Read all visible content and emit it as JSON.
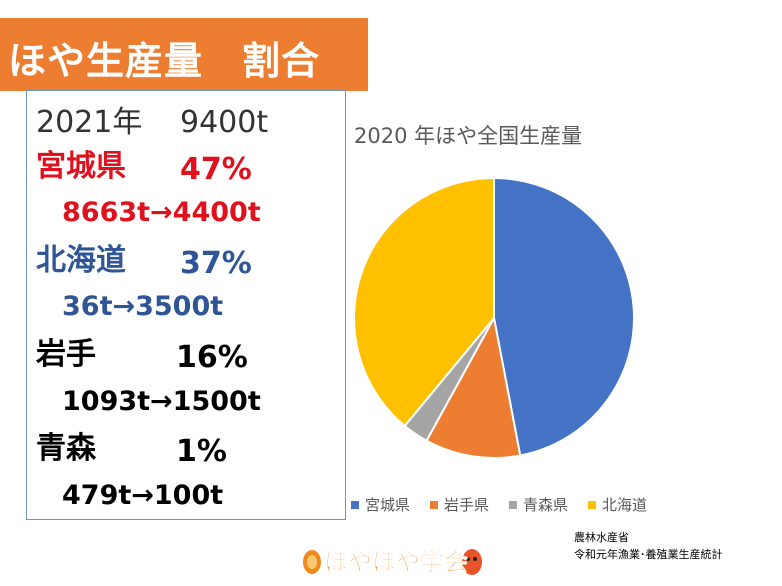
{
  "title": "ほや生産量　割合",
  "summary": {
    "year": "2021年",
    "total": "9400t"
  },
  "regions": [
    {
      "name": "宮城県",
      "percent": "47%",
      "change": "8663t→4400t",
      "color": "#e0101d"
    },
    {
      "name": "北海道",
      "percent": "37%",
      "change": "36t→3500t",
      "color": "#2f5597"
    },
    {
      "name": "岩手",
      "percent": "16%",
      "change": "1093t→1500t",
      "color": "#000000"
    },
    {
      "name": "青森",
      "percent": "1%",
      "change": "479t→100t",
      "color": "#000000"
    }
  ],
  "chart_data": {
    "type": "pie",
    "title": "2020 年ほや全国生産量",
    "categories": [
      "宮城県",
      "岩手県",
      "青森県",
      "北海道"
    ],
    "values": [
      47,
      11,
      3,
      39
    ],
    "colors": [
      "#4472c4",
      "#ed7d31",
      "#a5a5a5",
      "#ffc000"
    ],
    "legend": "bottom"
  },
  "source": {
    "line1": "農林水産省",
    "line2": "令和元年漁業･養殖業生産統計"
  },
  "logo": {
    "text": "ほやほや学会"
  }
}
